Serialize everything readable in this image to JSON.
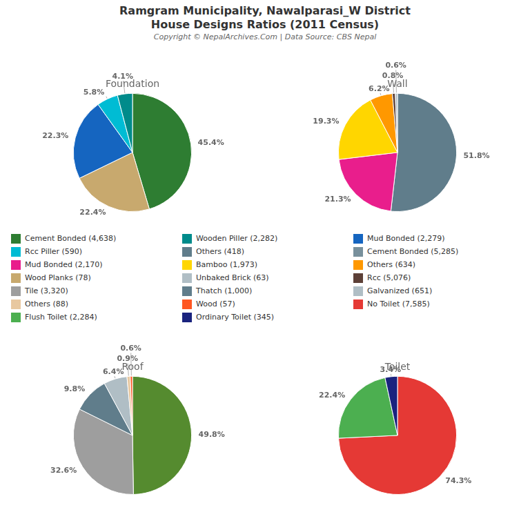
{
  "title": "Ramgram Municipality, Nawalparasi_W District",
  "subtitle": "House Designs Ratios (2011 Census)",
  "annotations": [
    "Copyright © NepalArchives.Com | Data Source: CBS Nepal"
  ],
  "legend_entries": [
    [
      {
        "name": "Cement Bonded (4,638)",
        "color": "#2e7d32"
      },
      {
        "name": "Rcc Piller (590)",
        "color": "#00bcd4"
      },
      {
        "name": "Mud Bonded (2,170)",
        "color": "#e91e8c"
      },
      {
        "name": "Wood Planks (78)",
        "color": "#c8a96e"
      },
      {
        "name": "Tile (3,320)",
        "color": "#9e9e9e"
      },
      {
        "name": "Others (88)",
        "color": "#e8c8a0"
      },
      {
        "name": "Flush Toilet (2,284)",
        "color": "#4caf50"
      }
    ],
    [
      {
        "name": "Wooden Piller (2,282)",
        "color": "#008b8b"
      },
      {
        "name": "Others (418)",
        "color": "#607d8b"
      },
      {
        "name": "Bamboo (1,973)",
        "color": "#ffd600"
      },
      {
        "name": "Unbaked Brick (63)",
        "color": "#b0bec5"
      },
      {
        "name": "Thatch (1,000)",
        "color": "#607d8b"
      },
      {
        "name": "Wood (57)",
        "color": "#ff5722"
      },
      {
        "name": "Ordinary Toilet (345)",
        "color": "#1a237e"
      }
    ],
    [
      {
        "name": "Mud Bonded (2,279)",
        "color": "#1565c0"
      },
      {
        "name": "Cement Bonded (5,285)",
        "color": "#78909c"
      },
      {
        "name": "Others (634)",
        "color": "#ff9800"
      },
      {
        "name": "Rcc (5,076)",
        "color": "#5d4037"
      },
      {
        "name": "Galvanized (651)",
        "color": "#b0bec5"
      },
      {
        "name": "No Toilet (7,585)",
        "color": "#e53935"
      }
    ]
  ],
  "chart_data": [
    {
      "type": "pie",
      "title": "Foundation",
      "values": [
        45.4,
        22.4,
        22.3,
        5.8,
        4.1
      ],
      "value_labels": [
        "45.4%",
        "22.4%",
        "22.3%",
        "5.8%",
        "4.1%"
      ],
      "colors": [
        "#2e7d32",
        "#c8a96e",
        "#1565c0",
        "#00bcd4",
        "#008b8b"
      ],
      "data_labels": true,
      "legend": false
    },
    {
      "type": "pie",
      "title": "Wall",
      "values": [
        51.8,
        21.3,
        19.3,
        6.2,
        0.8,
        0.6
      ],
      "value_labels": [
        "51.8%",
        "21.3%",
        "19.3%",
        "6.2%",
        "0.8%",
        "0.6%"
      ],
      "colors": [
        "#607d8b",
        "#e91e8c",
        "#ffd600",
        "#ff9800",
        "#5d4037",
        "#b0bec5"
      ],
      "data_labels": true,
      "legend": false
    },
    {
      "type": "pie",
      "title": "Roof",
      "values": [
        49.8,
        32.6,
        9.8,
        6.4,
        0.9,
        0.6
      ],
      "value_labels": [
        "49.8%",
        "32.6%",
        "9.8%",
        "6.4%",
        "0.9%",
        "0.6%"
      ],
      "colors": [
        "#558b2f",
        "#9e9e9e",
        "#607d8b",
        "#b0bec5",
        "#e8c8a0",
        "#ff5722"
      ],
      "data_labels": true,
      "legend": false
    },
    {
      "type": "pie",
      "title": "Toilet",
      "values": [
        74.3,
        22.4,
        3.4
      ],
      "value_labels": [
        "74.3%",
        "22.4%",
        "3.4%"
      ],
      "colors": [
        "#e53935",
        "#4caf50",
        "#1a237e"
      ],
      "data_labels": true,
      "legend": false
    }
  ]
}
